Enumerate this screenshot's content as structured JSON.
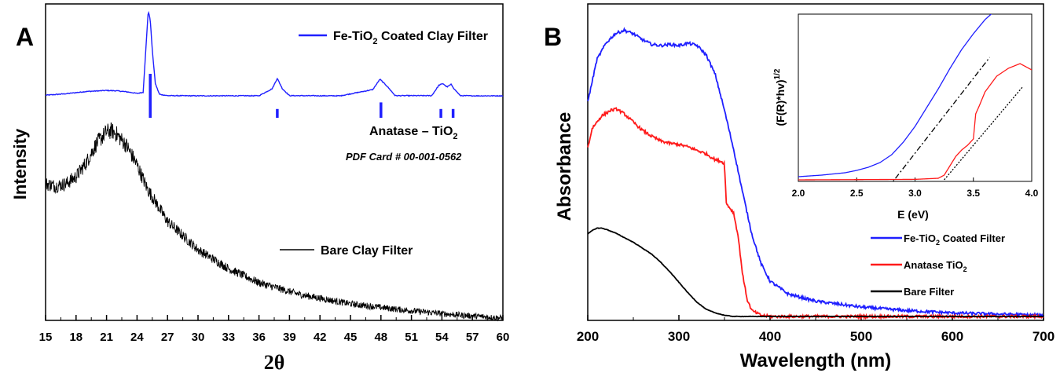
{
  "chart_data": [
    {
      "panel": "A",
      "type": "line",
      "xlabel": "2θ",
      "ylabel": "Intensity",
      "xlim": [
        15,
        60
      ],
      "x_ticks": [
        15,
        18,
        21,
        24,
        27,
        30,
        33,
        36,
        39,
        42,
        45,
        48,
        51,
        54,
        57,
        60
      ],
      "y_ticks": false,
      "series": [
        {
          "name": "Fe-TiO2 Coated Clay Filter",
          "legend_text": "Fe-TiO",
          "legend_sub": "2",
          "legend_rest": " Coated Clay Filter",
          "color": "#1f1fff",
          "x": [
            15,
            17,
            19,
            21,
            22,
            23,
            24,
            24.6,
            24.9,
            25.1,
            25.3,
            25.5,
            25.8,
            26.2,
            27,
            30,
            36,
            37.3,
            37.8,
            38.3,
            39,
            44,
            47.2,
            47.9,
            48.6,
            49.4,
            53,
            53.7,
            54.1,
            54.5,
            54.9,
            55.2,
            55.8,
            57,
            60
          ],
          "y": [
            2.5,
            4.2,
            6.8,
            8.0,
            7.6,
            6.4,
            4.6,
            5.8,
            62,
            100,
            90,
            55,
            16,
            3.6,
            2.0,
            1.8,
            1.9,
            10,
            22,
            10,
            2.0,
            1.8,
            9,
            21,
            13,
            2.0,
            2.0,
            14,
            16,
            12,
            15,
            10,
            2.0,
            1.8,
            1.8
          ]
        },
        {
          "name": "Bare Clay Filter",
          "color": "#000000",
          "x": [
            15,
            16,
            17,
            18,
            19,
            20,
            21,
            21.5,
            22,
            23,
            24,
            25,
            27,
            30,
            33,
            36,
            40,
            45,
            50,
            55,
            60
          ],
          "y": [
            58,
            57,
            58,
            61,
            67,
            75,
            80,
            80.5,
            79,
            74,
            66,
            56,
            42,
            30,
            22,
            16,
            11,
            7,
            4.5,
            2.5,
            1.0
          ]
        }
      ],
      "reference": {
        "name": "Anatase – TiO2",
        "legend_text": "Anatase – TiO",
        "legend_sub": "2",
        "card": "PDF Card # 00-001-0562",
        "positions": [
          25.3,
          37.8,
          48.0,
          53.9,
          55.1
        ],
        "intensities": [
          100,
          20,
          35,
          20,
          20
        ]
      }
    },
    {
      "panel": "B",
      "type": "line",
      "xlabel": "Wavelength (nm)",
      "ylabel": "Absorbance",
      "xlim": [
        200,
        700
      ],
      "x_ticks": [
        200,
        300,
        400,
        500,
        600,
        700
      ],
      "y_ticks": false,
      "legend_position": "bottom-right",
      "series": [
        {
          "name": "Fe-TiO2 Coated Filter",
          "legend_text": "Fe-TiO",
          "legend_sub": "2",
          "legend_rest": " Coated Filter",
          "color": "#1f1fff",
          "x": [
            200,
            210,
            220,
            230,
            240,
            250,
            260,
            270,
            280,
            290,
            300,
            310,
            320,
            330,
            340,
            350,
            360,
            370,
            380,
            390,
            400,
            420,
            450,
            500,
            550,
            600,
            650,
            700
          ],
          "y": [
            1.82,
            2.18,
            2.32,
            2.4,
            2.43,
            2.4,
            2.35,
            2.31,
            2.3,
            2.31,
            2.3,
            2.32,
            2.3,
            2.22,
            2.05,
            1.75,
            1.42,
            1.05,
            0.7,
            0.45,
            0.3,
            0.19,
            0.13,
            0.08,
            0.05,
            0.03,
            0.02,
            0.01
          ]
        },
        {
          "name": "Anatase TiO2",
          "legend_text": "Anatase TiO",
          "legend_sub": "2",
          "legend_rest": "",
          "color": "#ff1a1a",
          "x": [
            200,
            205,
            215,
            225,
            232,
            240,
            250,
            260,
            270,
            280,
            290,
            300,
            310,
            320,
            330,
            340,
            345,
            350,
            352,
            360,
            365,
            370,
            375,
            380,
            390,
            400,
            500,
            600,
            700
          ],
          "y": [
            1.43,
            1.6,
            1.7,
            1.75,
            1.76,
            1.72,
            1.65,
            1.58,
            1.53,
            1.49,
            1.47,
            1.46,
            1.44,
            1.41,
            1.38,
            1.33,
            1.32,
            1.3,
            0.96,
            0.88,
            0.68,
            0.35,
            0.14,
            0.05,
            0.01,
            0.0,
            0.0,
            0.0,
            0.0
          ]
        },
        {
          "name": "Bare Filter",
          "legend_text": "Bare Filter",
          "legend_sub": "",
          "legend_rest": "",
          "color": "#000000",
          "x": [
            200,
            205,
            210,
            215,
            220,
            230,
            240,
            250,
            260,
            270,
            280,
            290,
            300,
            310,
            320,
            330,
            340,
            350,
            360,
            370,
            380,
            400,
            500,
            600,
            700
          ],
          "y": [
            0.7,
            0.73,
            0.75,
            0.75,
            0.74,
            0.71,
            0.67,
            0.63,
            0.58,
            0.53,
            0.46,
            0.38,
            0.29,
            0.2,
            0.12,
            0.06,
            0.03,
            0.01,
            0.0,
            0.0,
            0.0,
            0.0,
            0.0,
            0.0,
            0.0
          ]
        }
      ],
      "inset": {
        "type": "line",
        "xlabel": "E (eV)",
        "ylabel": "(F(R)*hv)1/2",
        "ylabel_main": "(F(R)*hv)",
        "ylabel_sup": "1/2",
        "xlim": [
          2.0,
          4.0
        ],
        "x_ticks": [
          "2.0",
          "2.5",
          "3.0",
          "3.5",
          "4.0"
        ],
        "series": [
          {
            "name": "Fe-TiO2",
            "color": "#1f1fff",
            "x": [
              2.0,
              2.2,
              2.4,
              2.5,
              2.6,
              2.7,
              2.8,
              2.9,
              3.0,
              3.1,
              3.2,
              3.3,
              3.4,
              3.5,
              3.6,
              3.66
            ],
            "y": [
              0.02,
              0.03,
              0.045,
              0.06,
              0.08,
              0.11,
              0.16,
              0.24,
              0.34,
              0.46,
              0.58,
              0.71,
              0.83,
              0.93,
              1.02,
              1.06
            ]
          },
          {
            "name": "Anatase TiO2",
            "color": "#ff1a1a",
            "x": [
              2.0,
              3.0,
              3.2,
              3.25,
              3.3,
              3.35,
              3.4,
              3.45,
              3.5,
              3.52,
              3.55,
              3.6,
              3.7,
              3.8,
              3.9,
              4.0
            ],
            "y": [
              0.0,
              0.003,
              0.01,
              0.03,
              0.09,
              0.15,
              0.19,
              0.22,
              0.26,
              0.42,
              0.47,
              0.56,
              0.66,
              0.71,
              0.74,
              0.7
            ]
          }
        ],
        "tangents": [
          {
            "x": [
              2.77,
              3.64
            ],
            "y": [
              -0.05,
              0.78
            ],
            "style": "dash-dot"
          },
          {
            "x": [
              3.25,
              3.92
            ],
            "y": [
              0.0,
              0.59
            ],
            "style": "dotted"
          }
        ]
      }
    }
  ],
  "panel_labels": [
    "A",
    "B"
  ]
}
